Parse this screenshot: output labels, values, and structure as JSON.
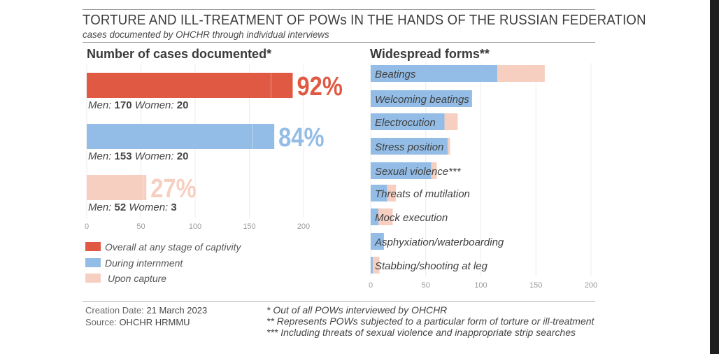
{
  "title": "TORTURE AND ILL-TREATMENT OF POWs IN THE HANDS OF THE RUSSIAN FEDERATION",
  "subtitle": "cases documented by OHCHR through individual interviews",
  "colors": {
    "overall": "#e05a43",
    "internment": "#93bde6",
    "capture": "#f6cfc1"
  },
  "chart_data": [
    {
      "type": "bar",
      "orientation": "horizontal",
      "title": "Number of cases documented*",
      "xlim": [
        0,
        200
      ],
      "xticks": [
        "0",
        "50",
        "100",
        "150",
        "200"
      ],
      "bars": [
        {
          "series": "Overall at any stage of captivity",
          "men": 170,
          "women": 20,
          "total": 190,
          "percent_label": "92%",
          "caption_men_label": "Men:",
          "caption_women_label": "Women:",
          "caption_men": "170",
          "caption_women": "20"
        },
        {
          "series": "During internment",
          "men": 153,
          "women": 20,
          "total": 173,
          "percent_label": "84%",
          "caption_men_label": "Men:",
          "caption_women_label": "Women:",
          "caption_men": "153",
          "caption_women": "20"
        },
        {
          "series": "Upon capture",
          "men": 52,
          "women": 3,
          "total": 55,
          "percent_label": "27%",
          "caption_men_label": "Men:",
          "caption_women_label": "Women:",
          "caption_men": "52",
          "caption_women": "3"
        }
      ],
      "legend": [
        "Overall at any stage of captivity",
        "During internment",
        "Upon capture"
      ],
      "legend_placement": "bottom-left"
    },
    {
      "type": "bar",
      "orientation": "horizontal",
      "stacked": true,
      "title": "Widespread forms**",
      "xlim": [
        0,
        200
      ],
      "xticks": [
        "0",
        "50",
        "100",
        "150",
        "200"
      ],
      "categories": [
        "Beatings",
        "Welcoming beatings",
        "Electrocution",
        "Stress position",
        "Sexual violence***",
        "Threats of mutilation",
        "Mock execution",
        "Asphyxiation/waterboarding",
        "Stabbing/shooting at leg"
      ],
      "series": [
        {
          "name": "During internment",
          "values": [
            115,
            92,
            67,
            70,
            55,
            15,
            7,
            12,
            2
          ]
        },
        {
          "name": "Upon capture",
          "values": [
            43,
            0,
            12,
            2,
            5,
            8,
            13,
            0,
            6
          ]
        }
      ]
    }
  ],
  "footer": {
    "creation_label": "Creation Date:",
    "creation_value": "21 March 2023",
    "source_label": "Source:",
    "source_value": "OHCHR HRMMU"
  },
  "notes": [
    "* Out of all POWs interviewed by OHCHR",
    "** Represents POWs subjected to a particular form of torture or ill-treatment",
    "*** Including threats of sexual violence and inappropriate strip searches"
  ]
}
